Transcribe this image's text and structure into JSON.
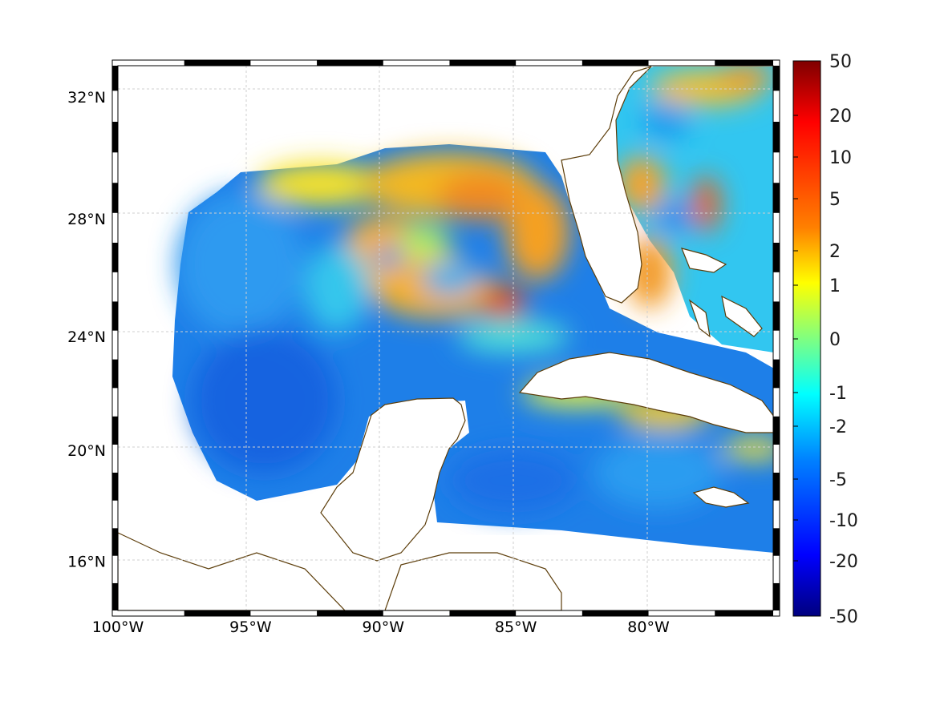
{
  "map": {
    "projection": "mercator",
    "lon_range": [
      -100,
      -75.3
    ],
    "lat_range": [
      14.2,
      33.0
    ],
    "lon_ticks": [
      {
        "value": -100,
        "label": "100°W"
      },
      {
        "value": -95,
        "label": "95°W"
      },
      {
        "value": -90,
        "label": "90°W"
      },
      {
        "value": -85,
        "label": "85°W"
      },
      {
        "value": -80,
        "label": "80°W"
      }
    ],
    "lat_ticks": [
      {
        "value": 32,
        "label": "32°N"
      },
      {
        "value": 28,
        "label": "28°N"
      },
      {
        "value": 24,
        "label": "24°N"
      },
      {
        "value": 20,
        "label": "20°N"
      },
      {
        "value": 16,
        "label": "16°N"
      }
    ],
    "grid": true,
    "coastline_color": "#5c3d0a",
    "land_color": "#ffffff"
  },
  "colorbar": {
    "colormap": "jet",
    "labels": [
      "50",
      "20",
      "10",
      "5",
      "2",
      "1",
      "0",
      "-1",
      "-2",
      "-5",
      "-10",
      "-20",
      "-50"
    ],
    "colors": [
      "#7f0000",
      "#ff0000",
      "#ff8000",
      "#ffff00",
      "#80ff80",
      "#00ffff",
      "#0080ff",
      "#0000ff",
      "#00007f"
    ]
  }
}
